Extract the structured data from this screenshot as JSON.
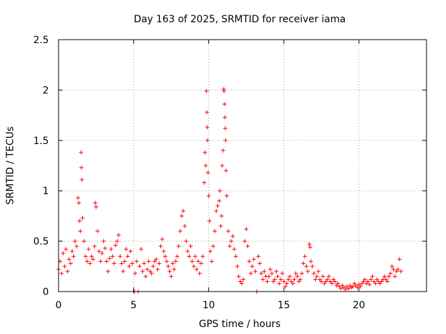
{
  "chart_data": {
    "type": "scatter",
    "title": "Day 163 of 2025, SRMTID for receiver iama",
    "xlabel": "GPS time / hours",
    "ylabel": "SRMTID / TECUs",
    "xlim": [
      0,
      24.5
    ],
    "ylim": [
      0,
      2.5
    ],
    "xticks": [
      0,
      5,
      10,
      15,
      20
    ],
    "xtick_labels": [
      "0",
      "5",
      "10",
      "15",
      "20"
    ],
    "yticks": [
      0,
      0.5,
      1,
      1.5,
      2,
      2.5
    ],
    "ytick_labels": [
      "0",
      "0.5",
      "1",
      "1.5",
      "2",
      "2.5"
    ],
    "grid": true,
    "marker": "+",
    "marker_color": "#ff0000",
    "series": [
      {
        "name": "SRMTID",
        "points": [
          [
            0.0,
            0.22
          ],
          [
            0.1,
            0.3
          ],
          [
            0.2,
            0.18
          ],
          [
            0.3,
            0.38
          ],
          [
            0.4,
            0.25
          ],
          [
            0.5,
            0.42
          ],
          [
            0.6,
            0.2
          ],
          [
            0.7,
            0.32
          ],
          [
            0.8,
            0.28
          ],
          [
            0.9,
            0.4
          ],
          [
            1.0,
            0.35
          ],
          [
            1.1,
            0.5
          ],
          [
            1.2,
            0.45
          ],
          [
            1.3,
            0.93
          ],
          [
            1.35,
            0.88
          ],
          [
            1.4,
            0.7
          ],
          [
            1.45,
            0.6
          ],
          [
            1.5,
            1.38
          ],
          [
            1.52,
            1.23
          ],
          [
            1.55,
            1.11
          ],
          [
            1.6,
            0.73
          ],
          [
            1.7,
            0.5
          ],
          [
            1.8,
            0.35
          ],
          [
            1.9,
            0.3
          ],
          [
            2.0,
            0.42
          ],
          [
            2.1,
            0.28
          ],
          [
            2.2,
            0.35
          ],
          [
            2.3,
            0.32
          ],
          [
            2.4,
            0.45
          ],
          [
            2.45,
            0.88
          ],
          [
            2.5,
            0.84
          ],
          [
            2.6,
            0.6
          ],
          [
            2.7,
            0.4
          ],
          [
            2.8,
            0.3
          ],
          [
            2.9,
            0.38
          ],
          [
            3.0,
            0.5
          ],
          [
            3.1,
            0.43
          ],
          [
            3.2,
            0.3
          ],
          [
            3.3,
            0.2
          ],
          [
            3.4,
            0.33
          ],
          [
            3.5,
            0.42
          ],
          [
            3.6,
            0.35
          ],
          [
            3.7,
            0.28
          ],
          [
            3.8,
            0.46
          ],
          [
            3.9,
            0.5
          ],
          [
            4.0,
            0.56
          ],
          [
            4.1,
            0.35
          ],
          [
            4.2,
            0.28
          ],
          [
            4.3,
            0.2
          ],
          [
            4.4,
            0.3
          ],
          [
            4.5,
            0.42
          ],
          [
            4.6,
            0.35
          ],
          [
            4.7,
            0.25
          ],
          [
            4.8,
            0.4
          ],
          [
            4.9,
            0.28
          ],
          [
            5.0,
            0.0
          ],
          [
            5.05,
            0.0
          ],
          [
            5.1,
            0.18
          ],
          [
            5.2,
            0.3
          ],
          [
            5.3,
            0.0
          ],
          [
            5.4,
            0.25
          ],
          [
            5.5,
            0.42
          ],
          [
            5.6,
            0.2
          ],
          [
            5.7,
            0.28
          ],
          [
            5.8,
            0.15
          ],
          [
            5.9,
            0.22
          ],
          [
            6.0,
            0.3
          ],
          [
            6.1,
            0.2
          ],
          [
            6.2,
            0.18
          ],
          [
            6.3,
            0.25
          ],
          [
            6.4,
            0.3
          ],
          [
            6.5,
            0.32
          ],
          [
            6.6,
            0.22
          ],
          [
            6.7,
            0.28
          ],
          [
            6.8,
            0.45
          ],
          [
            6.9,
            0.52
          ],
          [
            7.0,
            0.4
          ],
          [
            7.1,
            0.35
          ],
          [
            7.2,
            0.3
          ],
          [
            7.3,
            0.25
          ],
          [
            7.4,
            0.2
          ],
          [
            7.5,
            0.15
          ],
          [
            7.6,
            0.28
          ],
          [
            7.7,
            0.22
          ],
          [
            7.8,
            0.3
          ],
          [
            7.9,
            0.35
          ],
          [
            8.0,
            0.45
          ],
          [
            8.1,
            0.6
          ],
          [
            8.2,
            0.75
          ],
          [
            8.3,
            0.8
          ],
          [
            8.4,
            0.65
          ],
          [
            8.5,
            0.5
          ],
          [
            8.6,
            0.4
          ],
          [
            8.7,
            0.35
          ],
          [
            8.8,
            0.45
          ],
          [
            8.9,
            0.3
          ],
          [
            9.0,
            0.25
          ],
          [
            9.1,
            0.35
          ],
          [
            9.2,
            0.22
          ],
          [
            9.3,
            0.3
          ],
          [
            9.4,
            0.18
          ],
          [
            9.5,
            0.28
          ],
          [
            9.6,
            0.35
          ],
          [
            9.7,
            1.08
          ],
          [
            9.75,
            1.38
          ],
          [
            9.8,
            1.25
          ],
          [
            9.85,
            1.99
          ],
          [
            9.88,
            1.78
          ],
          [
            9.9,
            1.63
          ],
          [
            9.92,
            1.5
          ],
          [
            9.95,
            1.18
          ],
          [
            10.0,
            0.95
          ],
          [
            10.05,
            0.7
          ],
          [
            10.1,
            0.4
          ],
          [
            10.2,
            0.3
          ],
          [
            10.3,
            0.45
          ],
          [
            10.4,
            0.6
          ],
          [
            10.5,
            0.8
          ],
          [
            10.6,
            0.85
          ],
          [
            10.7,
            0.9
          ],
          [
            10.75,
            1.0
          ],
          [
            10.8,
            0.65
          ],
          [
            10.85,
            0.75
          ],
          [
            10.9,
            1.25
          ],
          [
            10.95,
            1.4
          ],
          [
            11.0,
            2.01
          ],
          [
            11.02,
            1.99
          ],
          [
            11.05,
            1.86
          ],
          [
            11.08,
            1.73
          ],
          [
            11.1,
            1.62
          ],
          [
            11.12,
            1.5
          ],
          [
            11.15,
            1.2
          ],
          [
            11.2,
            0.95
          ],
          [
            11.3,
            0.6
          ],
          [
            11.4,
            0.45
          ],
          [
            11.5,
            0.5
          ],
          [
            11.6,
            0.55
          ],
          [
            11.7,
            0.42
          ],
          [
            11.8,
            0.35
          ],
          [
            11.9,
            0.25
          ],
          [
            12.0,
            0.15
          ],
          [
            12.1,
            0.1
          ],
          [
            12.2,
            0.08
          ],
          [
            12.3,
            0.12
          ],
          [
            12.4,
            0.5
          ],
          [
            12.5,
            0.62
          ],
          [
            12.6,
            0.45
          ],
          [
            12.7,
            0.3
          ],
          [
            12.8,
            0.18
          ],
          [
            12.9,
            0.25
          ],
          [
            13.0,
            0.32
          ],
          [
            13.1,
            0.2
          ],
          [
            13.2,
            0.0
          ],
          [
            13.3,
            0.35
          ],
          [
            13.4,
            0.28
          ],
          [
            13.5,
            0.18
          ],
          [
            13.6,
            0.12
          ],
          [
            13.7,
            0.2
          ],
          [
            13.8,
            0.15
          ],
          [
            13.9,
            0.1
          ],
          [
            14.0,
            0.15
          ],
          [
            14.1,
            0.22
          ],
          [
            14.2,
            0.18
          ],
          [
            14.3,
            0.1
          ],
          [
            14.4,
            0.12
          ],
          [
            14.5,
            0.2
          ],
          [
            14.6,
            0.15
          ],
          [
            14.7,
            0.08
          ],
          [
            14.8,
            0.12
          ],
          [
            14.9,
            0.18
          ],
          [
            15.0,
            0.1
          ],
          [
            15.1,
            0.05
          ],
          [
            15.2,
            0.08
          ],
          [
            15.3,
            0.12
          ],
          [
            15.4,
            0.15
          ],
          [
            15.5,
            0.1
          ],
          [
            15.6,
            0.08
          ],
          [
            15.7,
            0.12
          ],
          [
            15.8,
            0.18
          ],
          [
            15.9,
            0.15
          ],
          [
            16.0,
            0.1
          ],
          [
            16.1,
            0.12
          ],
          [
            16.2,
            0.18
          ],
          [
            16.3,
            0.28
          ],
          [
            16.4,
            0.35
          ],
          [
            16.5,
            0.25
          ],
          [
            16.6,
            0.2
          ],
          [
            16.7,
            0.47
          ],
          [
            16.75,
            0.44
          ],
          [
            16.8,
            0.3
          ],
          [
            16.9,
            0.25
          ],
          [
            17.0,
            0.18
          ],
          [
            17.1,
            0.12
          ],
          [
            17.2,
            0.15
          ],
          [
            17.3,
            0.2
          ],
          [
            17.4,
            0.12
          ],
          [
            17.5,
            0.1
          ],
          [
            17.6,
            0.15
          ],
          [
            17.7,
            0.08
          ],
          [
            17.8,
            0.1
          ],
          [
            17.9,
            0.12
          ],
          [
            18.0,
            0.15
          ],
          [
            18.1,
            0.1
          ],
          [
            18.2,
            0.08
          ],
          [
            18.3,
            0.12
          ],
          [
            18.4,
            0.1
          ],
          [
            18.5,
            0.06
          ],
          [
            18.6,
            0.08
          ],
          [
            18.7,
            0.05
          ],
          [
            18.8,
            0.03
          ],
          [
            18.9,
            0.06
          ],
          [
            19.0,
            0.04
          ],
          [
            19.1,
            0.02
          ],
          [
            19.2,
            0.05
          ],
          [
            19.3,
            0.03
          ],
          [
            19.4,
            0.06
          ],
          [
            19.5,
            0.04
          ],
          [
            19.6,
            0.05
          ],
          [
            19.7,
            0.08
          ],
          [
            19.8,
            0.06
          ],
          [
            19.9,
            0.04
          ],
          [
            20.0,
            0.07
          ],
          [
            20.1,
            0.05
          ],
          [
            20.2,
            0.08
          ],
          [
            20.3,
            0.1
          ],
          [
            20.4,
            0.12
          ],
          [
            20.5,
            0.08
          ],
          [
            20.6,
            0.1
          ],
          [
            20.7,
            0.07
          ],
          [
            20.8,
            0.12
          ],
          [
            20.9,
            0.15
          ],
          [
            21.0,
            0.1
          ],
          [
            21.1,
            0.08
          ],
          [
            21.2,
            0.12
          ],
          [
            21.3,
            0.1
          ],
          [
            21.4,
            0.08
          ],
          [
            21.5,
            0.1
          ],
          [
            21.6,
            0.12
          ],
          [
            21.7,
            0.15
          ],
          [
            21.8,
            0.12
          ],
          [
            21.9,
            0.1
          ],
          [
            22.0,
            0.15
          ],
          [
            22.1,
            0.18
          ],
          [
            22.2,
            0.25
          ],
          [
            22.3,
            0.22
          ],
          [
            22.4,
            0.15
          ],
          [
            22.5,
            0.2
          ],
          [
            22.6,
            0.22
          ],
          [
            22.7,
            0.32
          ],
          [
            22.8,
            0.2
          ]
        ]
      }
    ]
  }
}
